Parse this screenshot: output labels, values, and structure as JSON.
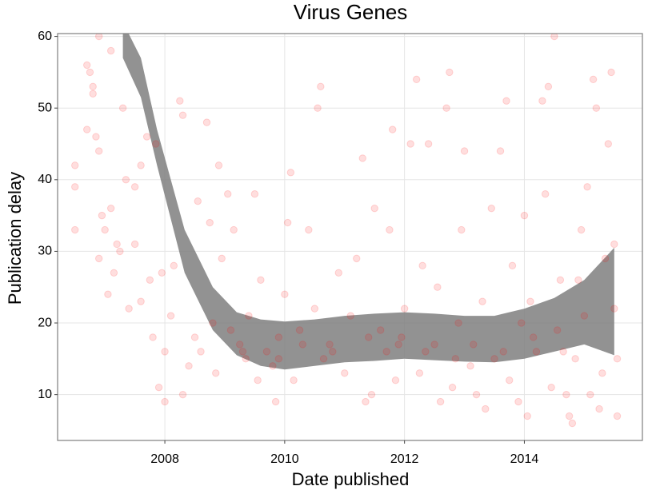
{
  "chart_data": {
    "type": "scatter",
    "title": "Virus Genes",
    "xlabel": "Date published",
    "ylabel": "Publication delay",
    "x": [
      2006.5,
      2006.5,
      2006.5,
      2006.7,
      2006.75,
      2006.7,
      2006.8,
      2006.8,
      2006.85,
      2006.9,
      2006.9,
      2006.9,
      2006.95,
      2007.0,
      2007.05,
      2007.1,
      2007.1,
      2007.15,
      2007.2,
      2007.25,
      2007.3,
      2007.35,
      2007.4,
      2007.5,
      2007.5,
      2007.6,
      2007.6,
      2007.7,
      2007.75,
      2007.8,
      2007.85,
      2007.9,
      2007.95,
      2008.0,
      2008.0,
      2008.1,
      2008.15,
      2008.25,
      2008.3,
      2008.3,
      2008.4,
      2008.5,
      2008.55,
      2008.6,
      2008.7,
      2008.75,
      2008.8,
      2008.85,
      2008.9,
      2008.95,
      2009.05,
      2009.1,
      2009.15,
      2009.25,
      2009.35,
      2009.4,
      2009.5,
      2009.55,
      2009.6,
      2009.7,
      2009.8,
      2009.85,
      2009.9,
      2010.0,
      2010.05,
      2010.1,
      2010.15,
      2010.25,
      2010.4,
      2010.5,
      2010.55,
      2010.6,
      2010.65,
      2010.75,
      2010.9,
      2011.0,
      2011.1,
      2011.2,
      2011.3,
      2011.35,
      2011.45,
      2011.5,
      2011.6,
      2011.7,
      2011.75,
      2011.8,
      2011.85,
      2011.95,
      2012.0,
      2012.1,
      2012.2,
      2012.25,
      2012.3,
      2012.4,
      2012.5,
      2012.55,
      2012.6,
      2012.7,
      2012.75,
      2012.8,
      2012.9,
      2012.95,
      2013.0,
      2013.1,
      2013.2,
      2013.3,
      2013.35,
      2013.45,
      2013.5,
      2013.6,
      2013.7,
      2013.75,
      2013.8,
      2013.9,
      2013.95,
      2014.0,
      2014.05,
      2014.1,
      2014.2,
      2014.3,
      2014.35,
      2014.4,
      2014.45,
      2014.5,
      2014.55,
      2014.6,
      2014.7,
      2014.75,
      2014.8,
      2014.85,
      2014.9,
      2014.95,
      2015.0,
      2015.05,
      2015.1,
      2015.15,
      2015.2,
      2015.25,
      2015.3,
      2015.35,
      2015.4,
      2015.45,
      2015.5,
      2015.5,
      2015.55,
      2015.55,
      2009.3,
      2009.9,
      2010.3,
      2010.8,
      2011.4,
      2011.9,
      2012.35,
      2012.85,
      2013.15,
      2013.65,
      2014.15,
      2014.65
    ],
    "values": [
      42,
      39,
      33,
      56,
      55,
      47,
      53,
      52,
      46,
      60,
      44,
      29,
      35,
      33,
      24,
      58,
      36,
      27,
      31,
      30,
      50,
      40,
      22,
      39,
      31,
      42,
      23,
      46,
      26,
      18,
      45,
      11,
      27,
      16,
      9,
      21,
      28,
      51,
      49,
      10,
      14,
      18,
      37,
      16,
      48,
      34,
      20,
      13,
      42,
      29,
      38,
      19,
      33,
      17,
      15,
      21,
      38,
      12,
      26,
      16,
      14,
      9,
      18,
      24,
      34,
      41,
      12,
      19,
      33,
      22,
      50,
      53,
      15,
      17,
      27,
      13,
      21,
      29,
      43,
      9,
      10,
      36,
      19,
      16,
      33,
      47,
      12,
      18,
      22,
      45,
      54,
      13,
      28,
      45,
      17,
      25,
      9,
      50,
      55,
      11,
      20,
      33,
      44,
      14,
      10,
      23,
      8,
      36,
      15,
      44,
      51,
      12,
      28,
      9,
      20,
      35,
      7,
      23,
      16,
      51,
      38,
      53,
      11,
      60,
      19,
      26,
      10,
      7,
      6,
      15,
      26,
      33,
      21,
      39,
      10,
      54,
      50,
      8,
      13,
      29,
      45,
      55,
      31,
      22,
      7,
      15,
      16,
      15,
      17,
      16,
      18,
      17,
      16,
      15,
      17,
      16,
      18,
      16
    ],
    "color": "#ff0000",
    "smooth": {
      "x": [
        2007.3,
        2007.6,
        2007.87,
        2008.33,
        2008.8,
        2009.2,
        2009.6,
        2010.0,
        2010.5,
        2011.0,
        2011.5,
        2012.0,
        2012.5,
        2013.0,
        2013.5,
        2014.0,
        2014.5,
        2015.0,
        2015.5
      ],
      "lower": [
        57,
        51.5,
        42,
        27,
        19,
        15.5,
        14,
        13.5,
        14,
        14.5,
        14.7,
        15,
        14.8,
        14.6,
        14.5,
        15,
        16,
        17,
        15.5
      ],
      "upper": [
        62,
        57,
        47,
        33,
        25,
        21.5,
        20.5,
        20.2,
        20.5,
        21,
        21.3,
        21.5,
        21.3,
        21,
        21,
        22,
        23.5,
        26,
        30.5
      ],
      "color": "#7f7f7f"
    },
    "xlim": [
      2006.21,
      2015.97
    ],
    "ylim": [
      3.6,
      60.4
    ],
    "xticks": [
      2008,
      2010,
      2012,
      2014
    ],
    "yticks": [
      10,
      20,
      30,
      40,
      50,
      60
    ],
    "grid": true
  }
}
